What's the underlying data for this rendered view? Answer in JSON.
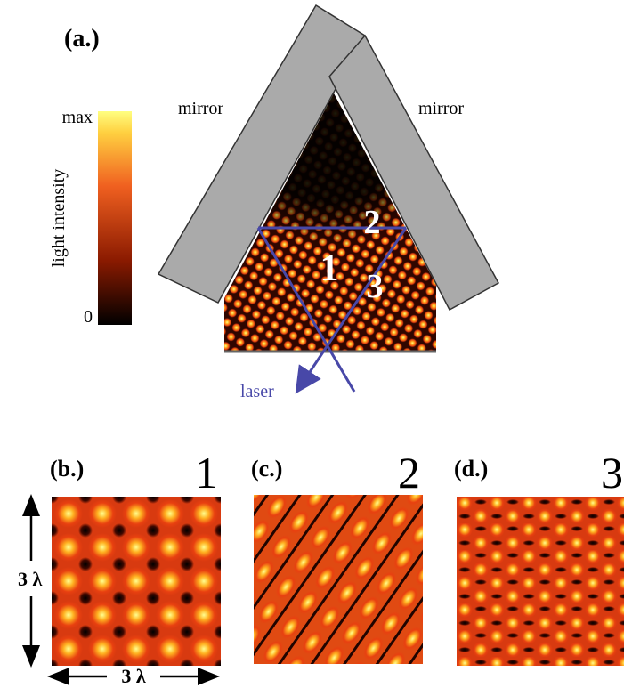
{
  "panel_a": {
    "label": "(a.)",
    "colorbar": {
      "max_label": "max",
      "min_label": "0",
      "title": "light intensity"
    },
    "mirror_left": "mirror",
    "mirror_right": "mirror",
    "points": [
      "1",
      "2",
      "3"
    ],
    "laser": "laser"
  },
  "panels": [
    {
      "label": "(b.)",
      "number": "1"
    },
    {
      "label": "(c.)",
      "number": "2"
    },
    {
      "label": "(d.)",
      "number": "3"
    }
  ],
  "scale": {
    "vertical": "3 λ",
    "horizontal": "3 λ"
  }
}
